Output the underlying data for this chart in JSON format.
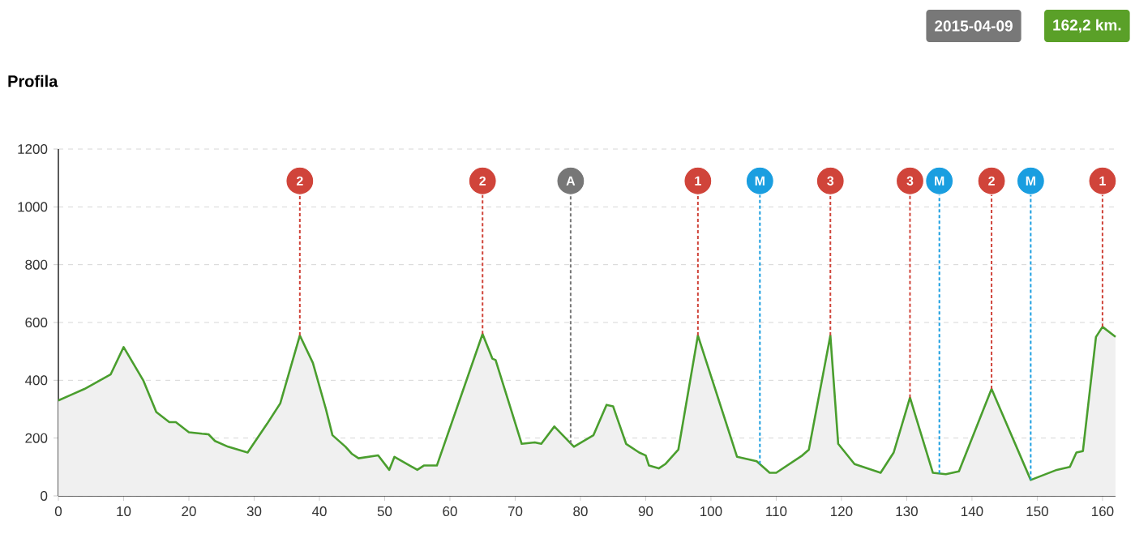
{
  "chart_data": {
    "type": "area",
    "title": "Profila",
    "annotations": [
      "2015-04-09",
      "162,2 km.",
      {
        "text": "2",
        "x": 37,
        "y": 1090
      },
      {
        "text": "2",
        "x": 65,
        "y": 1090
      },
      {
        "text": "A",
        "x": 78.5,
        "y": 1090
      },
      {
        "text": "1",
        "x": 98,
        "y": 1090
      },
      {
        "text": "M",
        "x": 107.5,
        "y": 1090
      },
      {
        "text": "3",
        "x": 118.3,
        "y": 1090
      },
      {
        "text": "3",
        "x": 130.5,
        "y": 1090
      },
      {
        "text": "M",
        "x": 135,
        "y": 1090
      },
      {
        "text": "2",
        "x": 143,
        "y": 1090
      },
      {
        "text": "M",
        "x": 149,
        "y": 1090
      },
      {
        "text": "1",
        "x": 160,
        "y": 1090
      }
    ],
    "x": [
      0,
      2,
      4,
      6,
      8,
      10,
      13,
      15,
      17,
      18,
      20,
      22,
      23,
      24,
      26,
      29,
      32,
      34,
      37,
      39,
      41,
      42,
      44,
      45,
      46,
      49,
      50.7,
      51.5,
      55,
      56,
      58,
      65,
      66.5,
      67,
      71,
      73,
      74,
      76,
      79,
      82,
      84,
      85,
      87,
      89,
      90,
      90.5,
      92,
      93,
      95,
      98,
      104,
      107,
      109,
      110,
      114,
      115,
      118.3,
      119.5,
      122,
      126,
      128,
      130.5,
      134,
      136,
      138,
      143,
      149,
      153,
      155,
      156,
      157,
      159,
      160,
      162
    ],
    "series": [
      {
        "color": "#4a9e2e",
        "values": [
          330,
          350,
          370,
          395,
          420,
          515,
          400,
          290,
          255,
          255,
          220,
          215,
          213,
          190,
          170,
          150,
          250,
          320,
          555,
          460,
          300,
          210,
          170,
          145,
          130,
          140,
          90,
          135,
          90,
          105,
          105,
          560,
          475,
          470,
          180,
          185,
          180,
          240,
          170,
          210,
          315,
          310,
          180,
          150,
          140,
          105,
          95,
          110,
          160,
          555,
          135,
          120,
          80,
          80,
          140,
          160,
          555,
          180,
          110,
          80,
          150,
          340,
          80,
          75,
          85,
          370,
          55,
          90,
          100,
          150,
          155,
          550,
          585,
          550
        ]
      }
    ],
    "xlim": [
      0,
      162
    ],
    "xticks": [
      0,
      10,
      20,
      30,
      40,
      50,
      60,
      70,
      80,
      90,
      100,
      110,
      120,
      130,
      140,
      150,
      160
    ],
    "ylim": [
      0,
      1200
    ],
    "yticks": [
      0,
      200,
      400,
      600,
      800,
      1000,
      1200
    ],
    "grid": "y",
    "line_style": "solid",
    "ref_lines": [
      {
        "axis": "x",
        "value": 37,
        "color": "#d0443a",
        "line_style": "dashed"
      },
      {
        "axis": "x",
        "value": 65,
        "color": "#d0443a",
        "line_style": "dashed"
      },
      {
        "axis": "x",
        "value": 78.5,
        "color": "#777777",
        "line_style": "dashed"
      },
      {
        "axis": "x",
        "value": 98,
        "color": "#d0443a",
        "line_style": "dashed"
      },
      {
        "axis": "x",
        "value": 107.5,
        "color": "#1a9ee0",
        "line_style": "dashed"
      },
      {
        "axis": "x",
        "value": 118.3,
        "color": "#d0443a",
        "line_style": "dashed"
      },
      {
        "axis": "x",
        "value": 130.5,
        "color": "#d0443a",
        "line_style": "dashed"
      },
      {
        "axis": "x",
        "value": 135,
        "color": "#1a9ee0",
        "line_style": "dashed"
      },
      {
        "axis": "x",
        "value": 143,
        "color": "#d0443a",
        "line_style": "dashed"
      },
      {
        "axis": "x",
        "value": 149,
        "color": "#1a9ee0",
        "line_style": "dashed"
      },
      {
        "axis": "x",
        "value": 160,
        "color": "#d0443a",
        "line_style": "dashed"
      }
    ]
  }
}
